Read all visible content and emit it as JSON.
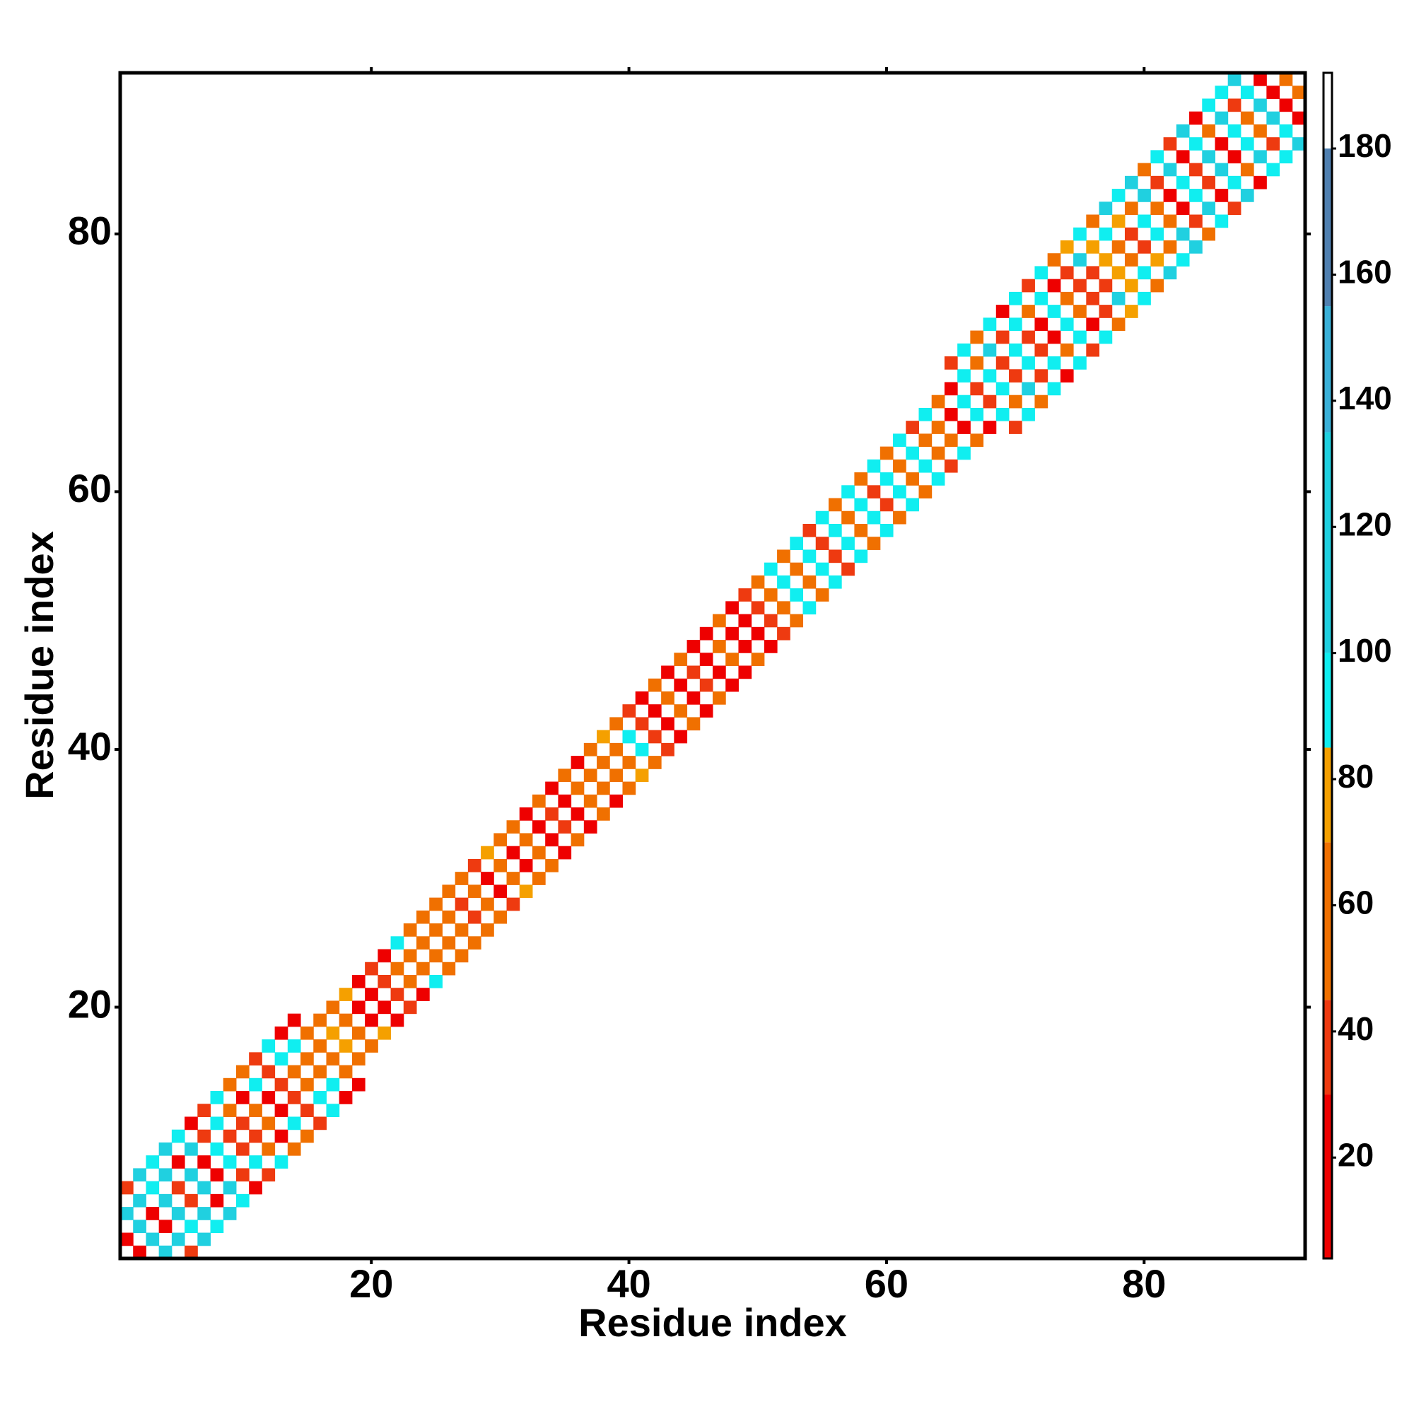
{
  "chart_data": {
    "type": "heatmap",
    "xlabel": "Residue index",
    "ylabel": "Residue index",
    "xlim": [
      0.5,
      92.5
    ],
    "ylim": [
      0.5,
      92.5
    ],
    "xticks": [
      20,
      40,
      60,
      80
    ],
    "yticks": [
      20,
      40,
      60,
      80
    ],
    "clim": [
      4,
      192
    ],
    "cticks": [
      20,
      40,
      60,
      80,
      100,
      120,
      140,
      160,
      180
    ],
    "colorscale": {
      "bounds": [
        4,
        30,
        45,
        70,
        85,
        100,
        135,
        155,
        180,
        192
      ],
      "colors": [
        "#ee0000",
        "#ee3a10",
        "#f07000",
        "#f5a000",
        "#10eef0",
        "#20d0e0",
        "#3ab0d8",
        "#5080b0",
        "#ffffff"
      ]
    },
    "symmetric": true,
    "diagonals": [
      {
        "offset": 1,
        "values": [
          30,
          110,
          25,
          110,
          40,
          110,
          20,
          100,
          45,
          35,
          55,
          25,
          45,
          60,
          70,
          50,
          75,
          55,
          30,
          25,
          45,
          60,
          70,
          50,
          65,
          55,
          45,
          60,
          30,
          70,
          25,
          50,
          30,
          45,
          25,
          55,
          70,
          60,
          50,
          95,
          45,
          25,
          70,
          30,
          45,
          25,
          50,
          30,
          25,
          45,
          55,
          95,
          50,
          95,
          45,
          100,
          50,
          95,
          45,
          100,
          55,
          95,
          50,
          70,
          30,
          95,
          45,
          100,
          35,
          95,
          45,
          30,
          100,
          50,
          35,
          45,
          80,
          60,
          45,
          100,
          50,
          30,
          95,
          45,
          110,
          30,
          100,
          50,
          110,
          25,
          50
        ]
      },
      {
        "offset": 3,
        "values": [
          110,
          115,
          100,
          115,
          30,
          110,
          45,
          95,
          60,
          25,
          100,
          40,
          100,
          95,
          65,
          70,
          55,
          75,
          25,
          45,
          30,
          95,
          60,
          55,
          70,
          50,
          65,
          45,
          75,
          55,
          70,
          25,
          50,
          30,
          55,
          25,
          70,
          75,
          65,
          45,
          30,
          50,
          25,
          70,
          30,
          25,
          50,
          30,
          45,
          50,
          95,
          50,
          100,
          45,
          100,
          50,
          95,
          55,
          100,
          50,
          95,
          45,
          100,
          70,
          30,
          100,
          50,
          110,
          45,
          100,
          50,
          100,
          30,
          45,
          110,
          80,
          100,
          75,
          50,
          115,
          45,
          110,
          30,
          100,
          55,
          110,
          45,
          100,
          30
        ]
      },
      {
        "offset": 5,
        "values": [
          45,
          115,
          100,
          110,
          95,
          30,
          45,
          100,
          55,
          50,
          40,
          95,
          25,
          30,
          null,
          null,
          null,
          null,
          null,
          null,
          null,
          null,
          null,
          null,
          null,
          null,
          null,
          null,
          null,
          null,
          null,
          null,
          null,
          null,
          null,
          null,
          null,
          null,
          null,
          null,
          null,
          null,
          null,
          null,
          null,
          null,
          null,
          null,
          null,
          null,
          null,
          null,
          null,
          null,
          null,
          null,
          null,
          null,
          null,
          null,
          null,
          null,
          null,
          null,
          45,
          100,
          50,
          95,
          30,
          100,
          45,
          100,
          55,
          80,
          95,
          70,
          120,
          100,
          110,
          60,
          100,
          45,
          110,
          30,
          100,
          95,
          110
        ]
      }
    ]
  }
}
